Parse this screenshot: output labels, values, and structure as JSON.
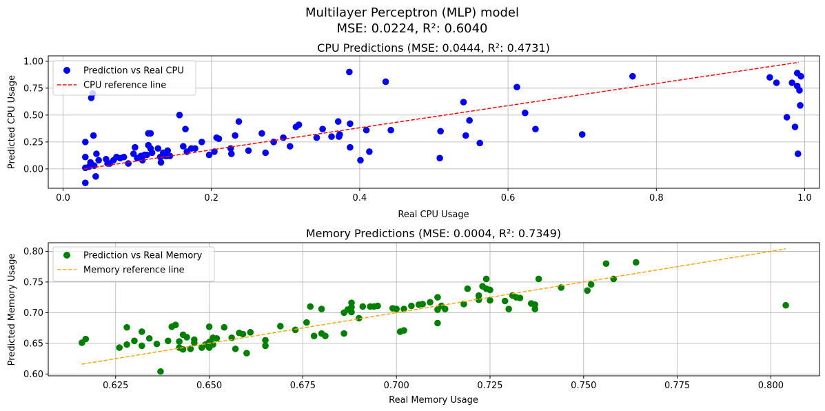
{
  "figure": {
    "title_line1": "Multilayer Perceptron (MLP) model",
    "title_line2": "MSE: 0.0224, R²: 0.6040"
  },
  "chart_data": [
    {
      "type": "scatter",
      "title": "CPU Predictions (MSE: 0.0444, R²: 0.4731)",
      "xlabel": "Real CPU Usage",
      "ylabel": "Predicted CPU Usage",
      "xlim": [
        -0.02,
        1.02
      ],
      "ylim": [
        -0.18,
        1.05
      ],
      "xticks": [
        0.0,
        0.2,
        0.4,
        0.6,
        0.8,
        1.0
      ],
      "xtick_labels": [
        "0.0",
        "0.2",
        "0.4",
        "0.6",
        "0.8",
        "1.0"
      ],
      "yticks": [
        0.0,
        0.25,
        0.5,
        0.75,
        1.0
      ],
      "ytick_labels": [
        "0.00",
        "0.25",
        "0.50",
        "0.75",
        "1.00"
      ],
      "grid": true,
      "legend_position": "top-left",
      "series": [
        {
          "name": "Prediction vs Real CPU",
          "kind": "points",
          "color": "#0000ff",
          "points": [
            [
              0.03,
              -0.13
            ],
            [
              0.03,
              0.25
            ],
            [
              0.03,
              0.11
            ],
            [
              0.03,
              0.01
            ],
            [
              0.035,
              0.02
            ],
            [
              0.037,
              0.06
            ],
            [
              0.038,
              0.66
            ],
            [
              0.04,
              0.7
            ],
            [
              0.041,
              0.31
            ],
            [
              0.042,
              0.03
            ],
            [
              0.044,
              -0.07
            ],
            [
              0.045,
              0.14
            ],
            [
              0.048,
              0.08
            ],
            [
              0.058,
              0.09
            ],
            [
              0.06,
              0.05
            ],
            [
              0.063,
              0.05
            ],
            [
              0.068,
              0.08
            ],
            [
              0.072,
              0.11
            ],
            [
              0.077,
              0.1
            ],
            [
              0.082,
              0.11
            ],
            [
              0.088,
              0.05
            ],
            [
              0.095,
              0.14
            ],
            [
              0.097,
              0.2
            ],
            [
              0.1,
              0.1
            ],
            [
              0.105,
              0.12
            ],
            [
              0.107,
              0.08
            ],
            [
              0.11,
              0.13
            ],
            [
              0.113,
              0.13
            ],
            [
              0.115,
              0.22
            ],
            [
              0.115,
              0.33
            ],
            [
              0.118,
              0.33
            ],
            [
              0.118,
              0.19
            ],
            [
              0.12,
              0.15
            ],
            [
              0.128,
              0.19
            ],
            [
              0.131,
              0.11
            ],
            [
              0.132,
              0.06
            ],
            [
              0.135,
              0.15
            ],
            [
              0.138,
              0.12
            ],
            [
              0.14,
              0.12
            ],
            [
              0.141,
              0.17
            ],
            [
              0.144,
              0.12
            ],
            [
              0.157,
              0.5
            ],
            [
              0.162,
              0.21
            ],
            [
              0.165,
              0.37
            ],
            [
              0.167,
              0.16
            ],
            [
              0.173,
              0.19
            ],
            [
              0.178,
              0.19
            ],
            [
              0.187,
              0.25
            ],
            [
              0.197,
              0.13
            ],
            [
              0.204,
              0.16
            ],
            [
              0.207,
              0.29
            ],
            [
              0.21,
              0.28
            ],
            [
              0.226,
              0.19
            ],
            [
              0.227,
              0.14
            ],
            [
              0.232,
              0.31
            ],
            [
              0.237,
              0.44
            ],
            [
              0.25,
              0.17
            ],
            [
              0.268,
              0.33
            ],
            [
              0.273,
              0.15
            ],
            [
              0.284,
              0.25
            ],
            [
              0.297,
              0.29
            ],
            [
              0.306,
              0.21
            ],
            [
              0.314,
              0.39
            ],
            [
              0.318,
              0.41
            ],
            [
              0.342,
              0.29
            ],
            [
              0.35,
              0.37
            ],
            [
              0.362,
              0.3
            ],
            [
              0.371,
              0.44
            ],
            [
              0.372,
              0.3
            ],
            [
              0.373,
              0.32
            ],
            [
              0.386,
              0.9
            ],
            [
              0.387,
              0.42
            ],
            [
              0.387,
              0.2
            ],
            [
              0.401,
              0.08
            ],
            [
              0.409,
              0.36
            ],
            [
              0.413,
              0.16
            ],
            [
              0.435,
              0.81
            ],
            [
              0.442,
              0.36
            ],
            [
              0.508,
              0.1
            ],
            [
              0.509,
              0.35
            ],
            [
              0.54,
              0.62
            ],
            [
              0.543,
              0.31
            ],
            [
              0.548,
              0.45
            ],
            [
              0.562,
              0.24
            ],
            [
              0.612,
              0.76
            ],
            [
              0.623,
              0.52
            ],
            [
              0.637,
              0.37
            ],
            [
              0.7,
              0.32
            ],
            [
              0.768,
              0.86
            ],
            [
              0.953,
              0.85
            ],
            [
              0.962,
              0.8
            ],
            [
              0.976,
              0.48
            ],
            [
              0.983,
              0.8
            ],
            [
              0.987,
              0.39
            ],
            [
              0.99,
              0.77
            ],
            [
              0.99,
              0.89
            ],
            [
              0.991,
              0.14
            ],
            [
              0.993,
              0.73
            ],
            [
              0.994,
              0.59
            ],
            [
              0.995,
              0.86
            ]
          ]
        },
        {
          "name": "CPU reference line",
          "kind": "dashed-line",
          "color": "#ff0000",
          "points": [
            [
              0.028,
              0.0
            ],
            [
              0.992,
              0.99
            ]
          ]
        }
      ]
    },
    {
      "type": "scatter",
      "title": "Memory Predictions (MSE: 0.0004, R²: 0.7349)",
      "xlabel": "Real Memory Usage",
      "ylabel": "Predicted Memory Usage",
      "xlim": [
        0.607,
        0.813
      ],
      "ylim": [
        0.597,
        0.814
      ],
      "xticks": [
        0.625,
        0.65,
        0.675,
        0.7,
        0.725,
        0.75,
        0.775,
        0.8
      ],
      "xtick_labels": [
        "0.625",
        "0.650",
        "0.675",
        "0.700",
        "0.725",
        "0.750",
        "0.775",
        "0.800"
      ],
      "yticks": [
        0.6,
        0.65,
        0.7,
        0.75,
        0.8
      ],
      "ytick_labels": [
        "0.60",
        "0.65",
        "0.70",
        "0.75",
        "0.80"
      ],
      "grid": true,
      "legend_position": "top-left",
      "series": [
        {
          "name": "Prediction vs Real Memory",
          "kind": "points",
          "color": "#008000",
          "points": [
            [
              0.616,
              0.651
            ],
            [
              0.617,
              0.657
            ],
            [
              0.626,
              0.643
            ],
            [
              0.628,
              0.676
            ],
            [
              0.628,
              0.648
            ],
            [
              0.63,
              0.654
            ],
            [
              0.632,
              0.646
            ],
            [
              0.632,
              0.669
            ],
            [
              0.634,
              0.658
            ],
            [
              0.636,
              0.649
            ],
            [
              0.637,
              0.604
            ],
            [
              0.639,
              0.654
            ],
            [
              0.64,
              0.677
            ],
            [
              0.641,
              0.68
            ],
            [
              0.642,
              0.653
            ],
            [
              0.642,
              0.643
            ],
            [
              0.643,
              0.664
            ],
            [
              0.643,
              0.64
            ],
            [
              0.644,
              0.66
            ],
            [
              0.645,
              0.641
            ],
            [
              0.646,
              0.656
            ],
            [
              0.646,
              0.651
            ],
            [
              0.648,
              0.643
            ],
            [
              0.649,
              0.648
            ],
            [
              0.65,
              0.652
            ],
            [
              0.65,
              0.677
            ],
            [
              0.65,
              0.643
            ],
            [
              0.651,
              0.648
            ],
            [
              0.651,
              0.659
            ],
            [
              0.652,
              0.658
            ],
            [
              0.654,
              0.676
            ],
            [
              0.656,
              0.659
            ],
            [
              0.657,
              0.641
            ],
            [
              0.658,
              0.667
            ],
            [
              0.659,
              0.665
            ],
            [
              0.66,
              0.634
            ],
            [
              0.661,
              0.668
            ],
            [
              0.665,
              0.646
            ],
            [
              0.665,
              0.655
            ],
            [
              0.669,
              0.678
            ],
            [
              0.673,
              0.672
            ],
            [
              0.676,
              0.684
            ],
            [
              0.677,
              0.71
            ],
            [
              0.678,
              0.662
            ],
            [
              0.68,
              0.706
            ],
            [
              0.68,
              0.666
            ],
            [
              0.681,
              0.662
            ],
            [
              0.686,
              0.7
            ],
            [
              0.686,
              0.666
            ],
            [
              0.687,
              0.705
            ],
            [
              0.688,
              0.716
            ],
            [
              0.688,
              0.709
            ],
            [
              0.688,
              0.701
            ],
            [
              0.69,
              0.691
            ],
            [
              0.691,
              0.71
            ],
            [
              0.693,
              0.71
            ],
            [
              0.694,
              0.71
            ],
            [
              0.695,
              0.711
            ],
            [
              0.699,
              0.707
            ],
            [
              0.7,
              0.706
            ],
            [
              0.701,
              0.669
            ],
            [
              0.702,
              0.706
            ],
            [
              0.702,
              0.671
            ],
            [
              0.704,
              0.711
            ],
            [
              0.706,
              0.713
            ],
            [
              0.707,
              0.714
            ],
            [
              0.709,
              0.717
            ],
            [
              0.711,
              0.725
            ],
            [
              0.711,
              0.683
            ],
            [
              0.711,
              0.705
            ],
            [
              0.712,
              0.711
            ],
            [
              0.713,
              0.706
            ],
            [
              0.718,
              0.714
            ],
            [
              0.719,
              0.739
            ],
            [
              0.722,
              0.721
            ],
            [
              0.722,
              0.728
            ],
            [
              0.723,
              0.743
            ],
            [
              0.724,
              0.739
            ],
            [
              0.724,
              0.755
            ],
            [
              0.725,
              0.737
            ],
            [
              0.725,
              0.72
            ],
            [
              0.729,
              0.719
            ],
            [
              0.73,
              0.706
            ],
            [
              0.731,
              0.728
            ],
            [
              0.732,
              0.725
            ],
            [
              0.733,
              0.724
            ],
            [
              0.736,
              0.715
            ],
            [
              0.737,
              0.706
            ],
            [
              0.737,
              0.713
            ],
            [
              0.738,
              0.755
            ],
            [
              0.744,
              0.741
            ],
            [
              0.751,
              0.736
            ],
            [
              0.752,
              0.746
            ],
            [
              0.756,
              0.78
            ],
            [
              0.758,
              0.755
            ],
            [
              0.764,
              0.782
            ],
            [
              0.804,
              0.712
            ]
          ]
        },
        {
          "name": "Memory reference line",
          "kind": "dashed-line",
          "color": "#ffa500",
          "points": [
            [
              0.616,
              0.616
            ],
            [
              0.804,
              0.804
            ]
          ]
        }
      ]
    }
  ]
}
